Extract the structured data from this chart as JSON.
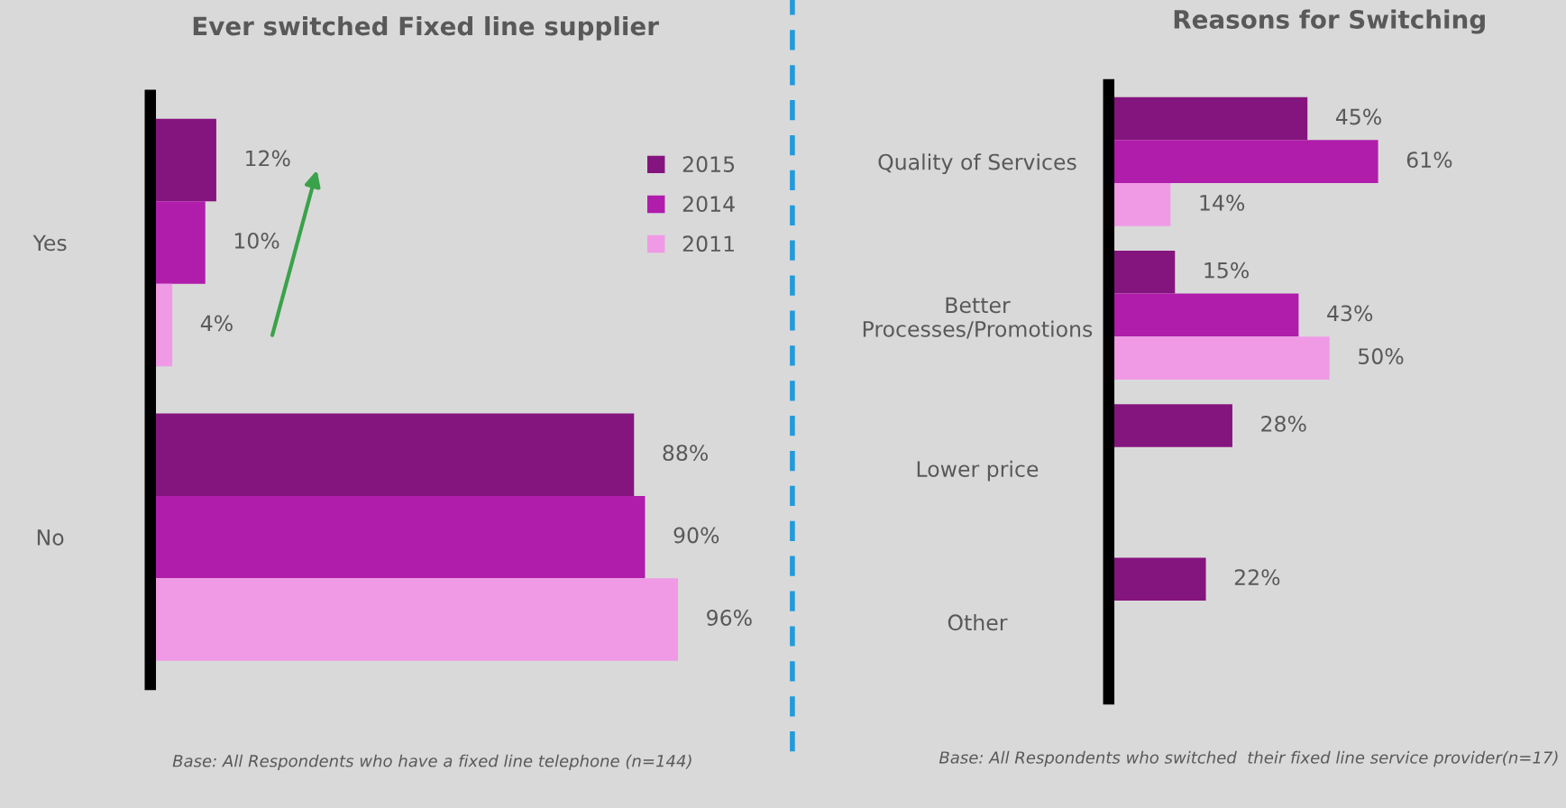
{
  "chart_data": [
    {
      "type": "bar",
      "orientation": "horizontal",
      "title": "Ever switched Fixed line supplier",
      "categories": [
        "Yes",
        "No"
      ],
      "series": [
        {
          "name": "2015",
          "color": "#85157e",
          "values": [
            12,
            88
          ],
          "value_labels": [
            "12%",
            "88%"
          ]
        },
        {
          "name": "2014",
          "color": "#b01dab",
          "values": [
            10,
            90
          ],
          "value_labels": [
            "10%",
            "90%"
          ]
        },
        {
          "name": "2011",
          "color": "#f09ae6",
          "values": [
            4,
            96
          ],
          "value_labels": [
            "4%",
            "96%"
          ]
        }
      ],
      "tick_labels": "y",
      "legend": "top right",
      "annotations": [
        "Base: All Respondents who have a fixed line telephone (n=144)"
      ]
    },
    {
      "type": "bar",
      "orientation": "horizontal",
      "title": "Reasons for Switching",
      "categories": [
        "Quality of Services",
        "Better\nProcesses/Promotions",
        "Lower price",
        "Other"
      ],
      "series": [
        {
          "color": "#85157e",
          "values": [
            45,
            15,
            28,
            22
          ],
          "value_labels": [
            "45%",
            "15%",
            "28%",
            "22%"
          ]
        },
        {
          "color": "#b01dab",
          "values": [
            61,
            43,
            null,
            null
          ],
          "value_labels": [
            "61%",
            "43%",
            null,
            null
          ]
        },
        {
          "color": "#f09ae6",
          "values": [
            14,
            50,
            null,
            null
          ],
          "value_labels": [
            "14%",
            "50%",
            null,
            null
          ]
        }
      ],
      "tick_labels": "y",
      "annotations": [
        "Base: All Respondents who switched  their fixed line service provider(n=17)"
      ]
    }
  ]
}
